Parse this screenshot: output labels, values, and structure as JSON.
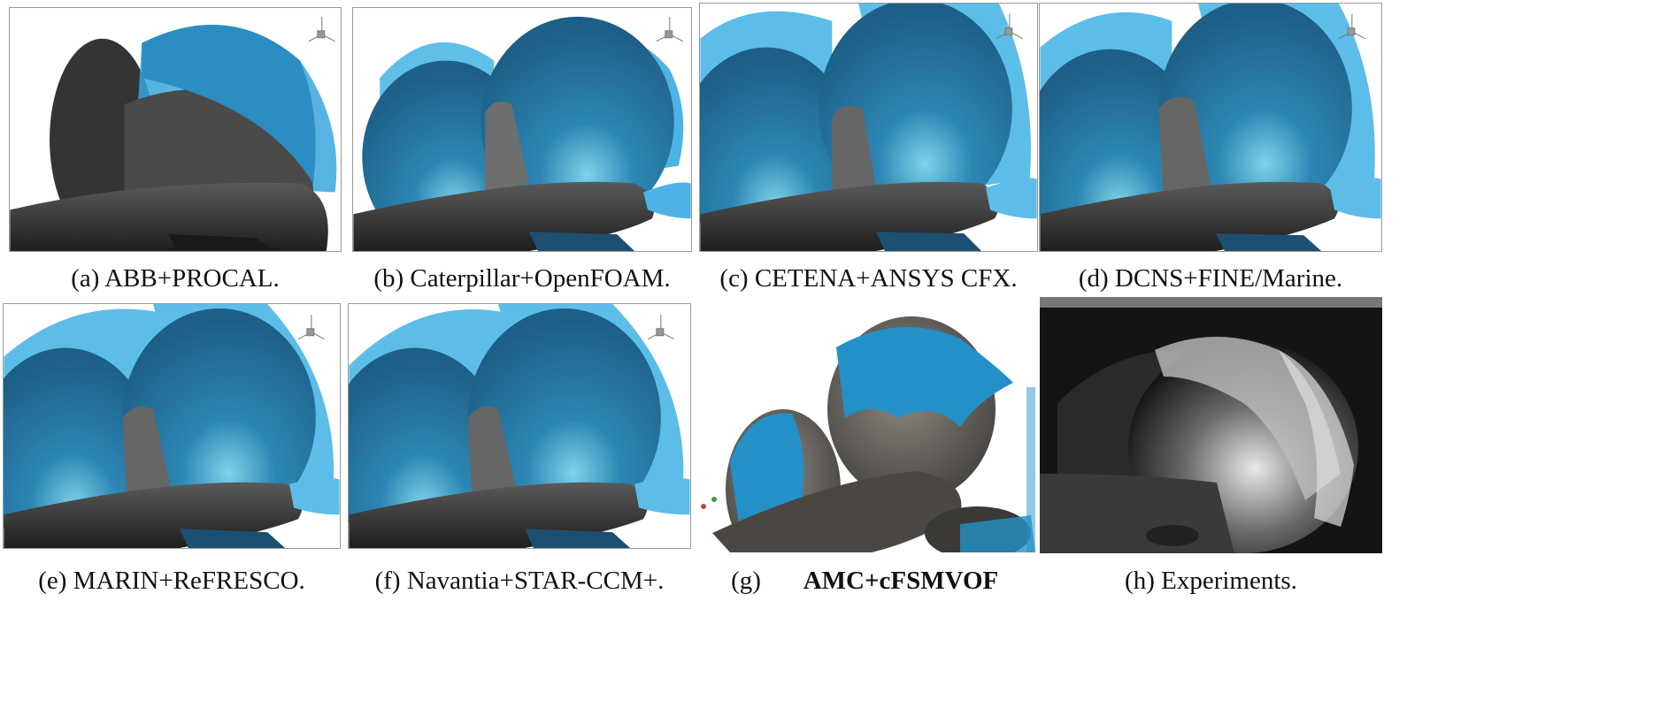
{
  "figure": {
    "captions": {
      "a": "(a) ABB+PROCAL.",
      "b": "(b) Caterpillar+OpenFOAM.",
      "c": "(c) CETENA+ANSYS CFX.",
      "d": "(d) DCNS+FINE/Marine.",
      "e": "(e) MARIN+ReFRESCO.",
      "f": "(f) Navantia+STAR-CCM+.",
      "g_label": "(g)",
      "g_bold": "AMC+cFSMVOF",
      "h": "(h) Experiments."
    },
    "axis_triad": {
      "x": "x",
      "y": "y",
      "z": "z"
    }
  },
  "colors": {
    "cavity_blue": "#2e8fc4",
    "cavity_light": "#4db3e6",
    "hub_dark": "#2f2f2f",
    "blade_grey": "#555555",
    "frame": "#9a9a9a",
    "photo_bg": "#141414"
  }
}
